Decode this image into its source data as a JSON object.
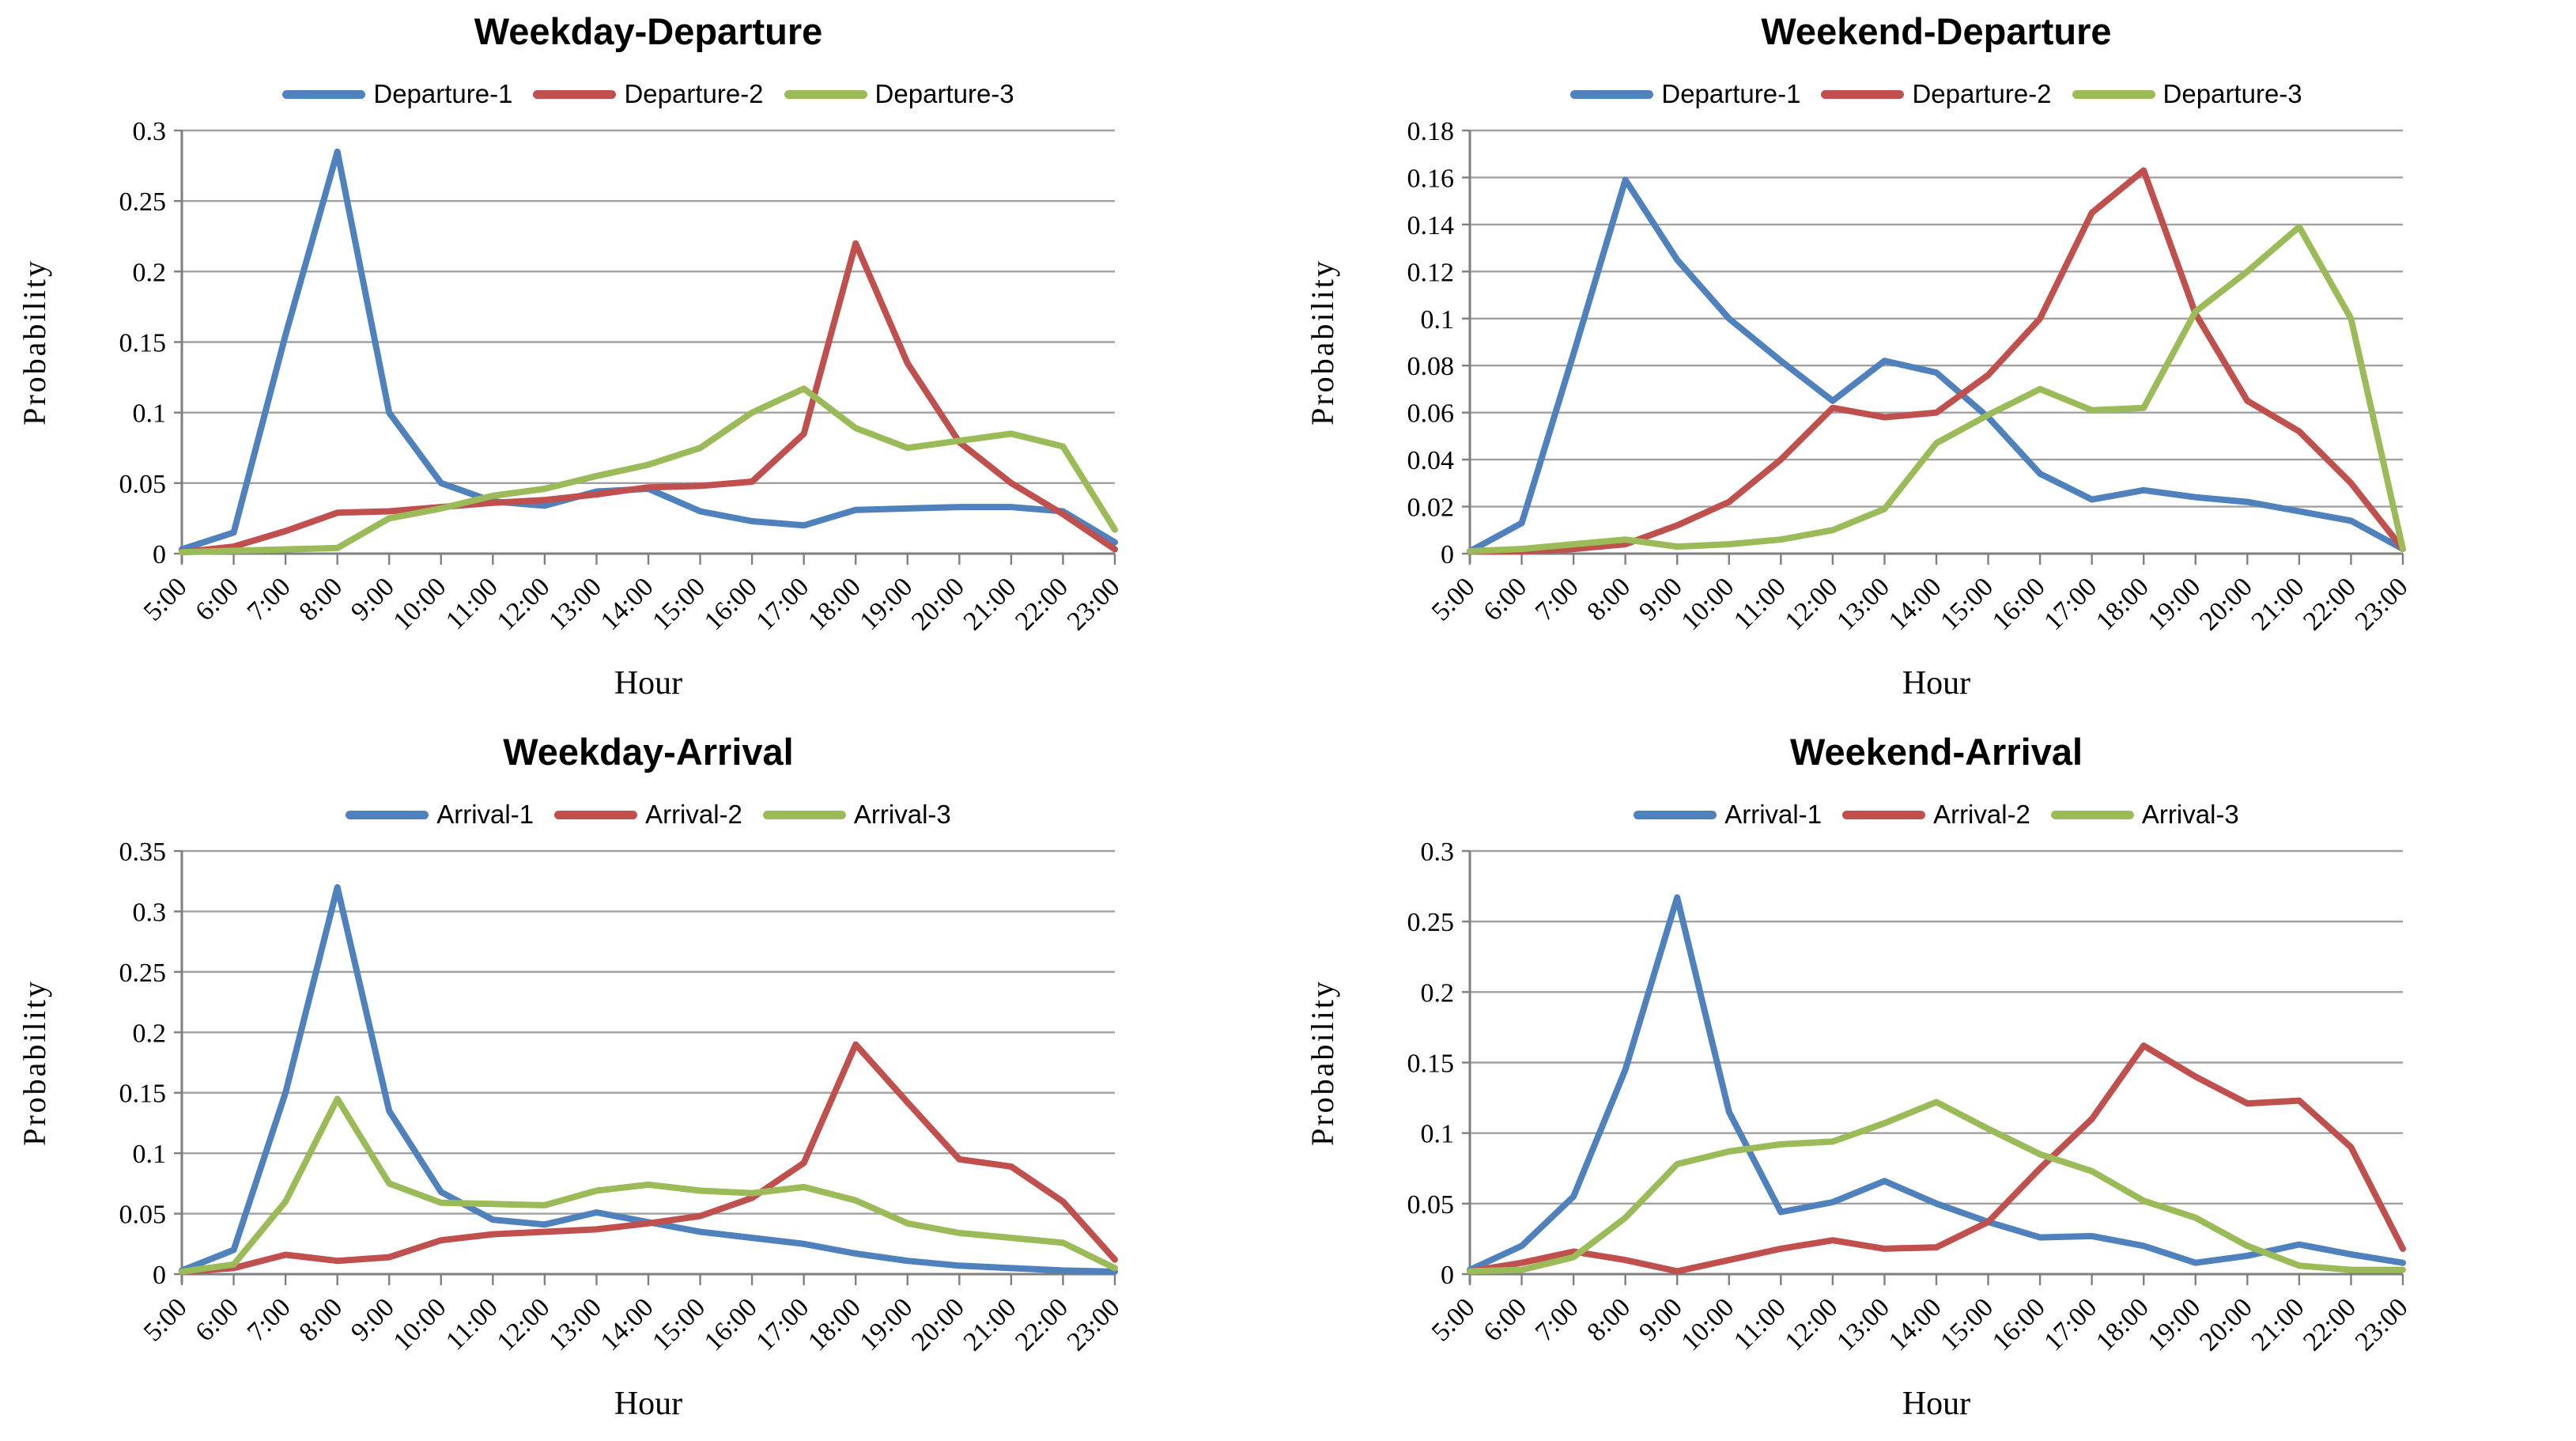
{
  "figure": {
    "layout": "2x2-grid",
    "background": "#ffffff",
    "grid_color": "#a0a0a0",
    "axis_color": "#7f7f7f"
  },
  "chart_data": [
    {
      "type": "line",
      "title": "Weekday-Departure",
      "xlabel": "Hour",
      "ylabel": "Probability",
      "ymax": 0.3,
      "yticks": [
        "0",
        "0.05",
        "0.1",
        "0.15",
        "0.2",
        "0.25",
        "0.3"
      ],
      "grid": "horizontal",
      "legend_position": "top",
      "categories": [
        "5:00",
        "6:00",
        "7:00",
        "8:00",
        "9:00",
        "10:00",
        "11:00",
        "12:00",
        "13:00",
        "14:00",
        "15:00",
        "16:00",
        "17:00",
        "18:00",
        "19:00",
        "20:00",
        "21:00",
        "22:00",
        "23:00"
      ],
      "series": [
        {
          "name": "Departure-1",
          "color": "#4f81bd",
          "values": [
            0.003,
            0.015,
            0.155,
            0.285,
            0.1,
            0.05,
            0.037,
            0.034,
            0.044,
            0.046,
            0.03,
            0.023,
            0.02,
            0.031,
            0.032,
            0.033,
            0.033,
            0.03,
            0.008
          ]
        },
        {
          "name": "Departure-2",
          "color": "#c0504d",
          "values": [
            0.001,
            0.005,
            0.016,
            0.029,
            0.03,
            0.033,
            0.036,
            0.038,
            0.042,
            0.047,
            0.048,
            0.051,
            0.085,
            0.22,
            0.135,
            0.079,
            0.05,
            0.028,
            0.003
          ]
        },
        {
          "name": "Departure-3",
          "color": "#9bbb59",
          "values": [
            0.001,
            0.002,
            0.003,
            0.004,
            0.025,
            0.032,
            0.041,
            0.046,
            0.055,
            0.063,
            0.075,
            0.1,
            0.117,
            0.089,
            0.075,
            0.08,
            0.085,
            0.076,
            0.017
          ]
        }
      ]
    },
    {
      "type": "line",
      "title": "Weekend-Departure",
      "xlabel": "Hour",
      "ylabel": "Probability",
      "ymax": 0.18,
      "yticks": [
        "0",
        "0.02",
        "0.04",
        "0.06",
        "0.08",
        "0.1",
        "0.12",
        "0.14",
        "0.16",
        "0.18"
      ],
      "grid": "horizontal",
      "legend_position": "top",
      "categories": [
        "5:00",
        "6:00",
        "7:00",
        "8:00",
        "9:00",
        "10:00",
        "11:00",
        "12:00",
        "13:00",
        "14:00",
        "15:00",
        "16:00",
        "17:00",
        "18:00",
        "19:00",
        "20:00",
        "21:00",
        "22:00",
        "23:00"
      ],
      "series": [
        {
          "name": "Departure-1",
          "color": "#4f81bd",
          "values": [
            0.001,
            0.013,
            0.085,
            0.159,
            0.125,
            0.1,
            0.082,
            0.065,
            0.082,
            0.077,
            0.058,
            0.034,
            0.023,
            0.027,
            0.024,
            0.022,
            0.018,
            0.014,
            0.002
          ]
        },
        {
          "name": "Departure-2",
          "color": "#c0504d",
          "values": [
            0.001,
            0.001,
            0.002,
            0.004,
            0.012,
            0.022,
            0.04,
            0.062,
            0.058,
            0.06,
            0.076,
            0.1,
            0.145,
            0.163,
            0.102,
            0.065,
            0.052,
            0.03,
            0.002
          ]
        },
        {
          "name": "Departure-3",
          "color": "#9bbb59",
          "values": [
            0.001,
            0.002,
            0.004,
            0.006,
            0.003,
            0.004,
            0.006,
            0.01,
            0.019,
            0.047,
            0.059,
            0.07,
            0.061,
            0.062,
            0.103,
            0.12,
            0.139,
            0.1,
            0.002
          ]
        }
      ]
    },
    {
      "type": "line",
      "title": "Weekday-Arrival",
      "xlabel": "Hour",
      "ylabel": "Probability",
      "ymax": 0.35,
      "yticks": [
        "0",
        "0.05",
        "0.1",
        "0.15",
        "0.2",
        "0.25",
        "0.3",
        "0.35"
      ],
      "grid": "horizontal",
      "legend_position": "top",
      "categories": [
        "5:00",
        "6:00",
        "7:00",
        "8:00",
        "9:00",
        "10:00",
        "11:00",
        "12:00",
        "13:00",
        "14:00",
        "15:00",
        "16:00",
        "17:00",
        "18:00",
        "19:00",
        "20:00",
        "21:00",
        "22:00",
        "23:00"
      ],
      "series": [
        {
          "name": "Arrival-1",
          "color": "#4f81bd",
          "values": [
            0.003,
            0.02,
            0.15,
            0.32,
            0.135,
            0.068,
            0.045,
            0.041,
            0.051,
            0.043,
            0.035,
            0.03,
            0.025,
            0.017,
            0.011,
            0.007,
            0.005,
            0.003,
            0.002
          ]
        },
        {
          "name": "Arrival-2",
          "color": "#c0504d",
          "values": [
            0.002,
            0.005,
            0.016,
            0.011,
            0.014,
            0.028,
            0.033,
            0.035,
            0.037,
            0.042,
            0.048,
            0.063,
            0.092,
            0.19,
            0.142,
            0.095,
            0.089,
            0.06,
            0.012
          ]
        },
        {
          "name": "Arrival-3",
          "color": "#9bbb59",
          "values": [
            0.002,
            0.008,
            0.06,
            0.145,
            0.075,
            0.059,
            0.058,
            0.057,
            0.069,
            0.074,
            0.069,
            0.067,
            0.072,
            0.061,
            0.042,
            0.034,
            0.03,
            0.026,
            0.005
          ]
        }
      ]
    },
    {
      "type": "line",
      "title": "Weekend-Arrival",
      "xlabel": "Hour",
      "ylabel": "Probability",
      "ymax": 0.3,
      "yticks": [
        "0",
        "0.05",
        "0.1",
        "0.15",
        "0.2",
        "0.25",
        "0.3"
      ],
      "grid": "horizontal",
      "legend_position": "top",
      "categories": [
        "5:00",
        "6:00",
        "7:00",
        "8:00",
        "9:00",
        "10:00",
        "11:00",
        "12:00",
        "13:00",
        "14:00",
        "15:00",
        "16:00",
        "17:00",
        "18:00",
        "19:00",
        "20:00",
        "21:00",
        "22:00",
        "23:00"
      ],
      "series": [
        {
          "name": "Arrival-1",
          "color": "#4f81bd",
          "values": [
            0.003,
            0.02,
            0.055,
            0.145,
            0.267,
            0.115,
            0.044,
            0.051,
            0.066,
            0.05,
            0.037,
            0.026,
            0.027,
            0.02,
            0.008,
            0.013,
            0.021,
            0.014,
            0.008
          ]
        },
        {
          "name": "Arrival-2",
          "color": "#c0504d",
          "values": [
            0.002,
            0.008,
            0.016,
            0.01,
            0.002,
            0.01,
            0.018,
            0.024,
            0.018,
            0.019,
            0.037,
            0.075,
            0.11,
            0.162,
            0.14,
            0.121,
            0.123,
            0.09,
            0.018
          ]
        },
        {
          "name": "Arrival-3",
          "color": "#9bbb59",
          "values": [
            0.002,
            0.003,
            0.012,
            0.04,
            0.078,
            0.087,
            0.092,
            0.094,
            0.107,
            0.122,
            0.103,
            0.085,
            0.073,
            0.052,
            0.04,
            0.02,
            0.006,
            0.003,
            0.003
          ]
        }
      ]
    }
  ]
}
